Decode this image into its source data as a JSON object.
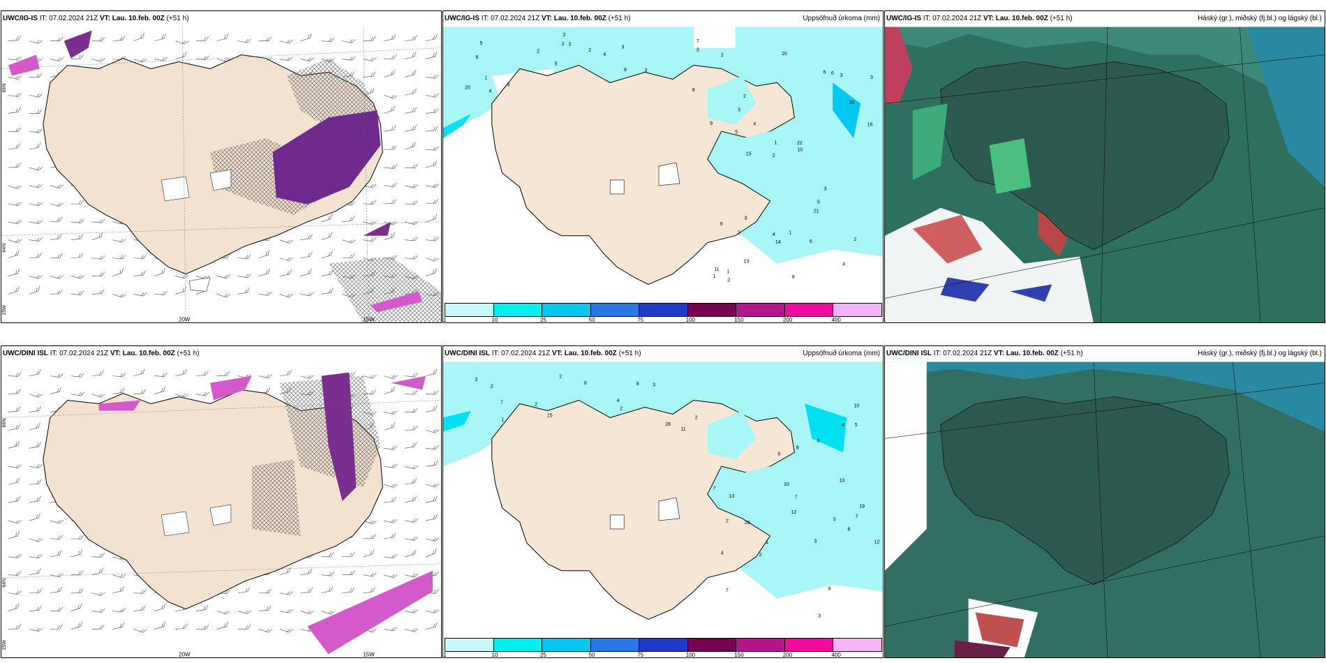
{
  "panels": [
    {
      "model": "UWC/IG-IS",
      "it_label": "IT:",
      "it_value": "07.02.2024 21Z",
      "vt_label": "VT:",
      "vt_value": "Lau. 10.feb. 00Z",
      "lead": "(+51 h)",
      "title": ""
    },
    {
      "model": "UWC/IG-IS",
      "it_label": "IT:",
      "it_value": "07.02.2024 21Z",
      "vt_label": "VT:",
      "vt_value": "Lau. 10.feb. 00Z",
      "lead": "(+51 h)",
      "title": "Uppsöfnuð úrkoma (mm)"
    },
    {
      "model": "UWC/IG-IS",
      "it_label": "IT:",
      "it_value": "07.02.2024 21Z",
      "vt_label": "VT:",
      "vt_value": "Lau. 10.feb. 00Z",
      "lead": "(+51 h)",
      "title": "Háský (gr.), miðský (fj.bl.) og lágský (bl.)"
    },
    {
      "model": "UWC/DINI ISL",
      "it_label": "IT:",
      "it_value": "07.02.2024 21Z",
      "vt_label": "VT:",
      "vt_value": "Lau. 10.feb. 00Z",
      "lead": "(+51 h)",
      "title": ""
    },
    {
      "model": "UWC/DINI ISL",
      "it_label": "IT:",
      "it_value": "07.02.2024 21Z",
      "vt_label": "VT:",
      "vt_value": "Lau. 10.feb. 00Z",
      "lead": "(+51 h)",
      "title": "Uppsöfnuð úrkoma (mm)"
    },
    {
      "model": "UWC/DINI ISL",
      "it_label": "IT:",
      "it_value": "07.02.2024 21Z",
      "vt_label": "VT:",
      "vt_value": "Lau. 10.feb. 00Z",
      "lead": "(+51 h)",
      "title": "Háský (gr.), miðský (fj.bl.) og lágský (bl.)"
    }
  ],
  "axis_labels": {
    "lat_66": "66N",
    "lat_64": "64N",
    "lon_20": "20W",
    "lon_15": "15W",
    "lon_25": "25W"
  },
  "precip_scale": {
    "ticks": [
      "1",
      "10",
      "25",
      "50",
      "75",
      "100",
      "150",
      "200",
      "400"
    ],
    "colors": [
      "#c8fafa",
      "#00f0f0",
      "#00c8f0",
      "#2878e6",
      "#1e3cc8",
      "#780050",
      "#b4148c",
      "#f00aa0",
      "#f5b4f5"
    ]
  },
  "precip_values_top": [
    "8",
    "6",
    "7",
    "5",
    "3",
    "4",
    "2",
    "2",
    "1",
    "2",
    "20",
    "3",
    "3",
    "4",
    "3",
    "5",
    "2",
    "2",
    "8",
    "3",
    "2",
    "4",
    "1",
    "2",
    "6",
    "3",
    "4",
    "2",
    "3",
    "9",
    "4",
    "5",
    "21",
    "13",
    "16",
    "22",
    "11",
    "14",
    "10",
    "9",
    "10",
    "3",
    "5",
    "6",
    "2",
    "2",
    "1",
    "1",
    "3",
    "10",
    "15",
    "9",
    "3",
    "6",
    "1"
  ],
  "precip_values_bottom": [
    "11",
    "7",
    "2",
    "3",
    "2",
    "2",
    "1",
    "2",
    "3",
    "6",
    "8",
    "28",
    "15",
    "2",
    "4",
    "4",
    "5",
    "7",
    "7",
    "7",
    "10",
    "8",
    "10",
    "12",
    "19",
    "13",
    "20",
    "12",
    "10",
    "5",
    "3",
    "2",
    "2",
    "3",
    "9",
    "8",
    "7",
    "9",
    "4",
    "3",
    "4"
  ],
  "cloud_legend": {
    "high": "gr.",
    "mid": "fj.bl.",
    "low": "bl."
  },
  "colors": {
    "land": "#f5e6d6",
    "ocean": "#ffffff",
    "precip_light": "#a0f5f5",
    "precip_mid": "#00e0f0",
    "snow_dark": "#6e2a8c",
    "snow_light": "#d45acb",
    "cloud_dark": "#2a5a4c",
    "cloud_mid": "#3f8a78",
    "cloud_low": "#2a8aa0",
    "cloud_high": "#c84a4a"
  }
}
